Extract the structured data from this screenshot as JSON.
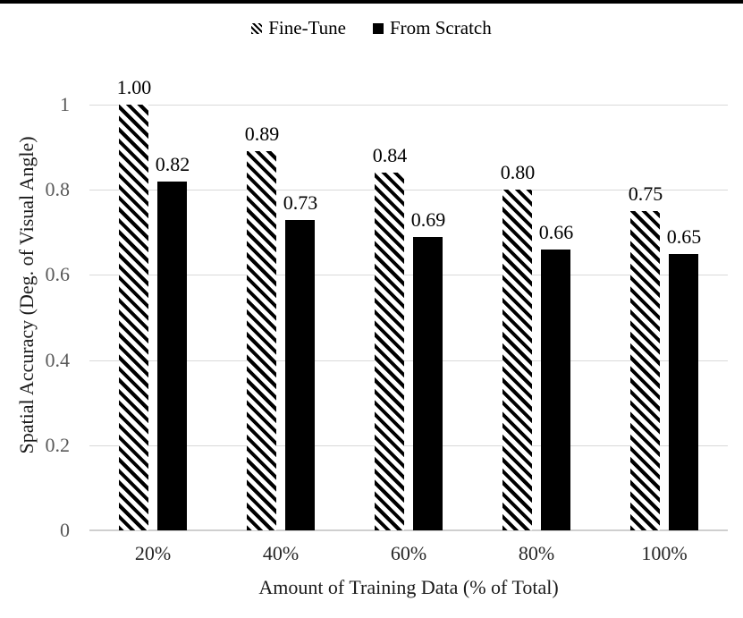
{
  "legend": {
    "position": "top-center",
    "items": [
      {
        "label": "Fine-Tune",
        "swatch": "hatch"
      },
      {
        "label": "From Scratch",
        "swatch": "solid"
      }
    ]
  },
  "chart_data": {
    "type": "bar",
    "title": "",
    "categories": [
      "20%",
      "40%",
      "60%",
      "80%",
      "100%"
    ],
    "series": [
      {
        "name": "Fine-Tune",
        "fill": "hatch",
        "values": [
          1.0,
          0.89,
          0.84,
          0.8,
          0.75
        ],
        "labels": [
          "1.00",
          "0.89",
          "0.84",
          "0.80",
          "0.75"
        ]
      },
      {
        "name": "From Scratch",
        "fill": "solid",
        "values": [
          0.82,
          0.73,
          0.69,
          0.66,
          0.65
        ],
        "labels": [
          "0.82",
          "0.73",
          "0.69",
          "0.66",
          "0.65"
        ]
      }
    ],
    "xlabel": "Amount of Training Data (% of Total)",
    "ylabel": "Spatial Accuracy (Deg. of Visual Angle)",
    "ylim": [
      0,
      1
    ],
    "yticks": [
      0,
      0.2,
      0.4,
      0.6,
      0.8,
      1
    ],
    "ytick_labels": [
      "0",
      "0.2",
      "0.4",
      "0.6",
      "0.8",
      "1"
    ],
    "grid": true,
    "legend_position": "top",
    "colors": {
      "bar_solid": "#000000",
      "hatch_stroke": "#000000",
      "gridline": "#d9d9d9",
      "axis_line": "#cfcfcf",
      "ytick_text": "#595959",
      "xtick_text": "#262626",
      "value_label_text": "#000000",
      "top_rule": "#000000"
    }
  }
}
